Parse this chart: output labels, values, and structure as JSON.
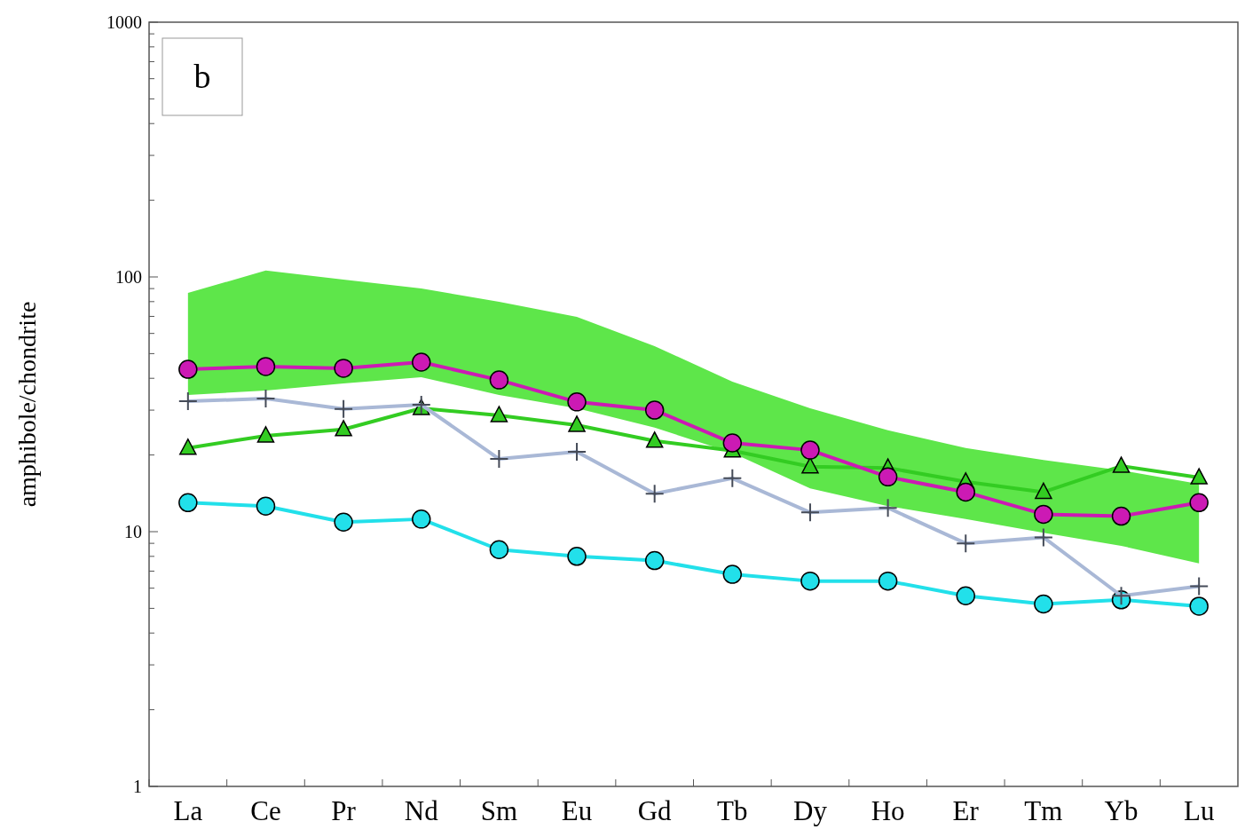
{
  "chart_data": {
    "type": "line",
    "ylabel": "amphibole/chondrite",
    "annotations": [
      "b"
    ],
    "log": "y",
    "grid": false,
    "categories": [
      "La",
      "Ce",
      "Pr",
      "Nd",
      "Sm",
      "Eu",
      "Gd",
      "Tb",
      "Dy",
      "Ho",
      "Er",
      "Tm",
      "Yb",
      "Lu"
    ],
    "ylim": [
      1,
      1000
    ],
    "yticks": [
      1,
      {
        "value": 2,
        "label": null
      },
      {
        "value": 3,
        "label": null
      },
      {
        "value": 4,
        "label": null
      },
      {
        "value": 5,
        "label": null
      },
      {
        "value": 6,
        "label": null
      },
      {
        "value": 7,
        "label": null
      },
      {
        "value": 8,
        "label": null
      },
      {
        "value": 9,
        "label": null
      },
      10,
      {
        "value": 20,
        "label": null
      },
      {
        "value": 30,
        "label": null
      },
      {
        "value": 40,
        "label": null
      },
      {
        "value": 50,
        "label": null
      },
      {
        "value": 60,
        "label": null
      },
      {
        "value": 70,
        "label": null
      },
      {
        "value": 80,
        "label": null
      },
      {
        "value": 90,
        "label": null
      },
      100,
      {
        "value": 200,
        "label": null
      },
      {
        "value": 300,
        "label": null
      },
      {
        "value": 400,
        "label": null
      },
      {
        "value": 500,
        "label": null
      },
      {
        "value": 600,
        "label": null
      },
      {
        "value": 700,
        "label": null
      },
      {
        "value": 800,
        "label": null
      },
      {
        "value": 900,
        "label": null
      },
      1000
    ],
    "series": [
      {
        "type": "area",
        "color": "#5ee64a",
        "values": [
          null,
          null,
          null,
          null,
          null,
          null,
          null,
          null,
          null,
          null,
          null,
          null,
          null,
          null
        ],
        "lower": [
          34.4,
          35.8,
          38.2,
          40.4,
          34.4,
          30.5,
          25.6,
          20.4,
          14.8,
          12.6,
          11.2,
          9.9,
          8.8,
          7.5
        ],
        "upper": [
          86.5,
          106,
          97.7,
          90.1,
          79.9,
          69.7,
          53.5,
          38.8,
          30.5,
          25.0,
          21.3,
          19.1,
          17.4,
          15.4
        ]
      },
      {
        "color": "#33cc22",
        "marker": "triangle",
        "values": [
          21.3,
          23.8,
          25.2,
          30.5,
          28.6,
          26.2,
          22.7,
          20.8,
          18.0,
          17.8,
          15.7,
          14.3,
          18.1,
          16.3
        ]
      },
      {
        "color": "#cc1ab4",
        "marker": "circle",
        "values": [
          43.4,
          44.5,
          43.8,
          46.3,
          39.4,
          32.3,
          30.0,
          22.3,
          20.9,
          16.4,
          14.3,
          11.7,
          11.5,
          13.0
        ]
      },
      {
        "color": "#22e0ea",
        "marker": "circle",
        "values": [
          13.0,
          12.6,
          10.9,
          11.2,
          8.5,
          8.0,
          7.7,
          6.8,
          6.4,
          6.4,
          5.6,
          5.2,
          5.4,
          5.1
        ]
      },
      {
        "color": "#a9b8d6",
        "marker": "cross",
        "values": [
          32.5,
          33.3,
          30.3,
          31.5,
          19.3,
          20.6,
          14.1,
          16.2,
          11.9,
          12.4,
          9.0,
          9.5,
          5.6,
          6.1
        ]
      }
    ]
  }
}
